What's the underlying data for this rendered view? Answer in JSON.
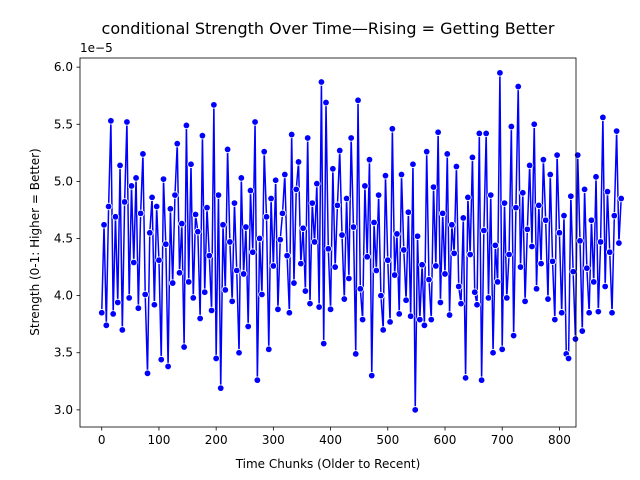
{
  "chart_data": {
    "type": "line",
    "title": "conditional Strength Over Time—Rising = Getting Better",
    "xlabel": "Time Chunks (Older to Recent)",
    "ylabel": "Strength (0-1: Higher = Better)",
    "y_offset_label": "1e−5",
    "y_scale": 1e-05,
    "xlim": [
      -38,
      829
    ],
    "ylim": [
      2.85,
      6.08
    ],
    "x_ticks": [
      0,
      100,
      200,
      300,
      400,
      500,
      600,
      700,
      800
    ],
    "x_tick_labels": [
      "0",
      "100",
      "200",
      "300",
      "400",
      "500",
      "600",
      "700",
      "800"
    ],
    "y_ticks": [
      3.0,
      3.5,
      4.0,
      4.5,
      5.0,
      5.5,
      6.0
    ],
    "y_tick_labels": [
      "3.0",
      "3.5",
      "4.0",
      "4.5",
      "5.0",
      "5.5",
      "6.0"
    ],
    "grid": false,
    "series": [
      {
        "color": "#0000ff",
        "marker": "circle",
        "x_start": 0,
        "x_step": 4,
        "values": [
          3.85,
          4.62,
          3.74,
          4.78,
          5.53,
          3.84,
          4.69,
          3.94,
          5.14,
          3.7,
          4.82,
          5.52,
          3.98,
          4.96,
          4.29,
          5.03,
          3.89,
          4.72,
          5.24,
          4.01,
          3.32,
          4.55,
          4.86,
          3.92,
          4.78,
          4.31,
          3.44,
          5.02,
          4.45,
          3.38,
          4.76,
          4.11,
          4.88,
          5.33,
          4.2,
          4.63,
          3.55,
          5.49,
          4.12,
          5.15,
          3.98,
          4.71,
          4.56,
          3.8,
          5.4,
          4.03,
          4.77,
          4.35,
          3.87,
          5.67,
          3.45,
          4.88,
          3.19,
          4.62,
          4.05,
          5.28,
          4.47,
          3.95,
          4.81,
          4.22,
          3.5,
          5.03,
          4.19,
          4.6,
          3.73,
          4.92,
          4.38,
          5.52,
          3.26,
          4.5,
          4.01,
          5.26,
          4.69,
          3.53,
          4.85,
          4.26,
          5.01,
          3.88,
          4.49,
          4.72,
          5.06,
          4.35,
          3.85,
          5.41,
          4.11,
          4.93,
          5.17,
          4.28,
          4.59,
          4.04,
          5.38,
          3.93,
          4.81,
          4.47,
          4.98,
          3.9,
          5.87,
          3.58,
          5.69,
          4.41,
          3.88,
          5.11,
          4.25,
          4.79,
          5.27,
          4.53,
          3.97,
          4.85,
          4.15,
          5.38,
          4.6,
          3.49,
          5.71,
          4.06,
          3.79,
          4.96,
          4.34,
          5.19,
          3.3,
          4.64,
          4.22,
          4.88,
          4.0,
          3.7,
          5.05,
          4.31,
          3.77,
          5.46,
          4.18,
          4.54,
          3.84,
          5.06,
          4.4,
          3.96,
          4.73,
          3.82,
          5.15,
          3.0,
          4.52,
          3.79,
          4.27,
          3.74,
          5.26,
          4.14,
          3.79,
          4.95,
          4.26,
          5.43,
          3.94,
          4.72,
          4.19,
          5.24,
          3.83,
          4.62,
          4.37,
          5.13,
          4.08,
          3.93,
          4.68,
          3.28,
          4.86,
          4.36,
          5.21,
          4.03,
          3.92,
          5.42,
          3.26,
          4.57,
          5.42,
          3.98,
          4.88,
          3.5,
          4.44,
          4.12,
          5.95,
          3.53,
          4.81,
          3.98,
          4.36,
          5.48,
          3.65,
          4.77,
          5.83,
          4.25,
          4.9,
          3.95,
          4.58,
          5.14,
          4.43,
          5.5,
          4.06,
          4.79,
          4.28,
          5.19,
          4.66,
          3.97,
          5.06,
          4.3,
          3.79,
          5.23,
          4.55,
          3.85,
          4.7,
          3.49,
          3.45,
          4.87,
          4.21,
          3.62,
          5.23,
          4.48,
          3.69,
          4.93,
          4.24,
          3.85,
          4.66,
          4.12,
          5.04,
          3.86,
          4.47,
          5.56,
          4.08,
          4.91,
          4.38,
          3.85,
          4.7,
          5.44,
          4.46,
          4.85
        ]
      }
    ]
  }
}
